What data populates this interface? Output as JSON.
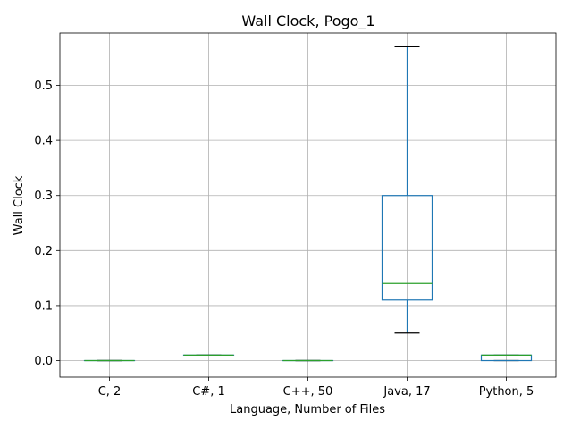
{
  "chart_data": {
    "type": "box",
    "title": "Wall Clock, Pogo_1",
    "xlabel": "Language, Number of Files",
    "ylabel": "Wall Clock",
    "ylim": [
      -0.03,
      0.595
    ],
    "yticks": [
      "0.0",
      "0.1",
      "0.2",
      "0.3",
      "0.4",
      "0.5"
    ],
    "ytick_values": [
      0.0,
      0.1,
      0.2,
      0.3,
      0.4,
      0.5
    ],
    "grid": true,
    "colors": {
      "box": "#1f77b4",
      "median": "#2ca02c",
      "whisker_cap": "#000000",
      "grid": "#b0b0b0"
    },
    "categories": [
      "C, 2",
      "C#, 1",
      "C++, 50",
      "Java, 17",
      "Python, 5"
    ],
    "boxes": [
      {
        "category": "C, 2",
        "whisker_low": 0.0,
        "q1": 0.0,
        "median": 0.0,
        "q3": 0.0,
        "whisker_high": 0.0
      },
      {
        "category": "C#, 1",
        "whisker_low": 0.01,
        "q1": 0.01,
        "median": 0.01,
        "q3": 0.01,
        "whisker_high": 0.01
      },
      {
        "category": "C++, 50",
        "whisker_low": 0.0,
        "q1": 0.0,
        "median": 0.0,
        "q3": 0.0,
        "whisker_high": 0.0
      },
      {
        "category": "Java, 17",
        "whisker_low": 0.05,
        "q1": 0.11,
        "median": 0.14,
        "q3": 0.3,
        "whisker_high": 0.57
      },
      {
        "category": "Python, 5",
        "whisker_low": 0.0,
        "q1": 0.0,
        "median": 0.01,
        "q3": 0.01,
        "whisker_high": 0.01
      }
    ]
  }
}
